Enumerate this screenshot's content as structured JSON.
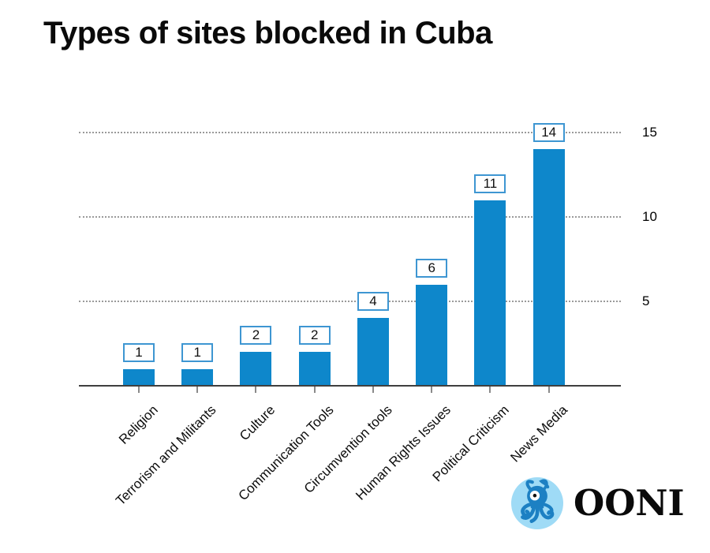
{
  "page": {
    "background": "#ffffff"
  },
  "title": "Types of sites blocked in Cuba",
  "chart_data": {
    "type": "bar",
    "title": "Types of sites blocked in Cuba",
    "categories": [
      "Religion",
      "Terrorism and Militants",
      "Culture",
      "Communication Tools",
      "Circumvention tools",
      "Human Rights Issues",
      "Political Criticism",
      "News Media"
    ],
    "values": [
      1,
      1,
      2,
      2,
      4,
      6,
      11,
      14
    ],
    "value_labels": [
      "1",
      "1",
      "2",
      "2",
      "4",
      "6",
      "11",
      "14"
    ],
    "xlabel": "",
    "ylabel": "",
    "ylim": [
      0,
      16
    ],
    "yticks": [
      5,
      10,
      15
    ],
    "grid": "horizontal-dotted",
    "legend_shown": false,
    "bar_color": "#0e87cb",
    "value_label_box": {
      "background": "#ffffff",
      "border_color": "#3e96d2",
      "text_color": "#111111"
    }
  },
  "colors": {
    "bar": "#0e87cb",
    "value_box_border": "#3e96d2",
    "axis_line": "#3f3f3f",
    "gridline": "#9a9a9a",
    "x_tick": "#8a8a8a",
    "text": "#0d0d0d",
    "logo_circle": "#9fdbf6",
    "logo_octopus": "#1c80c3"
  },
  "branding": {
    "logo_text": "OONI",
    "logo_icon": "octopus-icon"
  }
}
